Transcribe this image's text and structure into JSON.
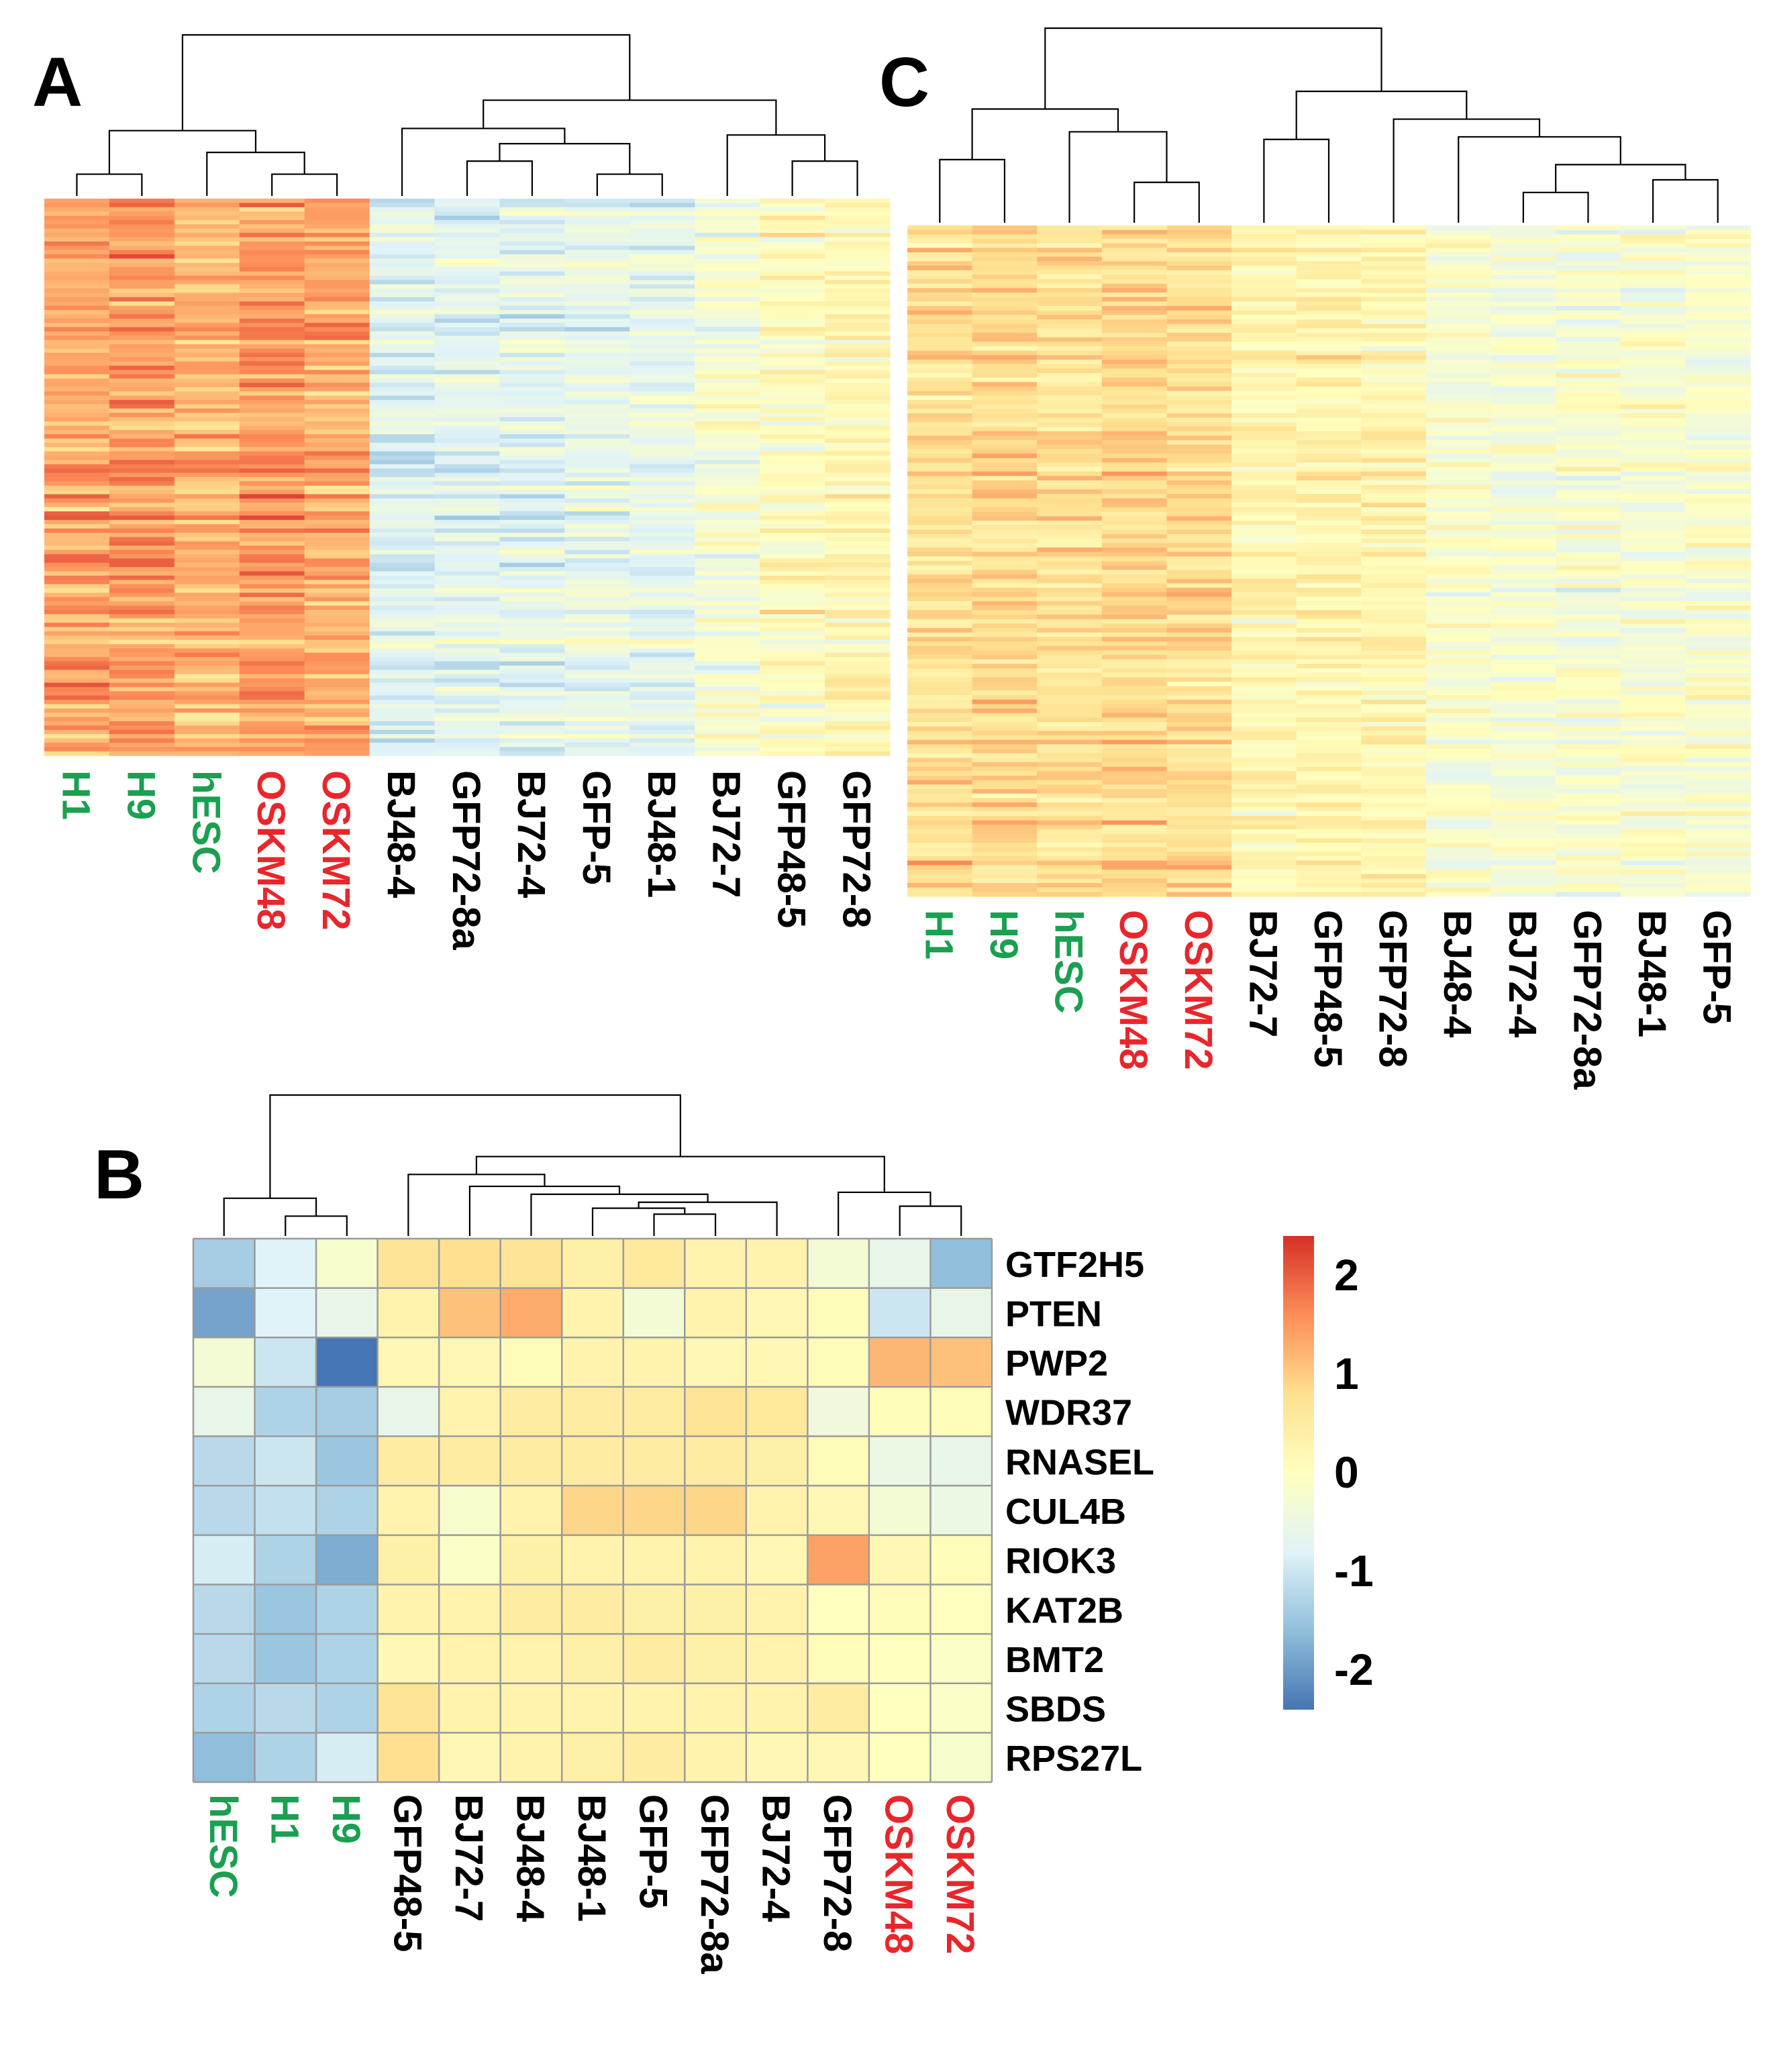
{
  "panels": [
    {
      "id": "A",
      "label": "A",
      "chart_data": {
        "type": "heatmap",
        "title": "",
        "columns": [
          "H1",
          "H9",
          "hESC",
          "OSKM48",
          "OSKM72",
          "BJ48-4",
          "GFP72-8a",
          "BJ72-4",
          "GFP-5",
          "BJ48-1",
          "BJ72-7",
          "GFP48-5",
          "GFP72-8"
        ],
        "column_groups": [
          "green",
          "green",
          "green",
          "red",
          "red",
          "black",
          "black",
          "black",
          "black",
          "black",
          "black",
          "black",
          "black"
        ],
        "column_means": [
          1.35,
          1.45,
          1.2,
          1.45,
          1.35,
          -0.75,
          -0.7,
          -0.7,
          -0.55,
          -0.6,
          -0.25,
          0.05,
          0.2
        ],
        "row_count": 130,
        "color_scale": [
          -2,
          2
        ],
        "dendrogram": "top"
      }
    },
    {
      "id": "C",
      "label": "C",
      "chart_data": {
        "type": "heatmap",
        "title": "",
        "columns": [
          "H1",
          "H9",
          "hESC",
          "OSKM48",
          "OSKM72",
          "BJ72-7",
          "GFP48-5",
          "GFP72-8",
          "BJ48-4",
          "BJ72-4",
          "GFP72-8a",
          "BJ48-1",
          "GFP-5"
        ],
        "column_groups": [
          "green",
          "green",
          "green",
          "red",
          "red",
          "black",
          "black",
          "black",
          "black",
          "black",
          "black",
          "black",
          "black"
        ],
        "column_means": [
          0.75,
          0.85,
          0.7,
          0.8,
          0.75,
          0.25,
          0.3,
          0.25,
          -0.2,
          -0.25,
          -0.2,
          -0.2,
          -0.15
        ],
        "row_count": 150,
        "color_scale": [
          -2,
          2
        ],
        "dendrogram": "top"
      }
    },
    {
      "id": "B",
      "label": "B",
      "chart_data": {
        "type": "heatmap",
        "title": "",
        "columns": [
          "hESC",
          "H1",
          "H9",
          "GFP48-5",
          "BJ72-7",
          "BJ48-4",
          "BJ48-1",
          "GFP-5",
          "GFP72-8a",
          "BJ72-4",
          "GFP72-8",
          "OSKM48",
          "OSKM72"
        ],
        "column_groups": [
          "green",
          "green",
          "green",
          "black",
          "black",
          "black",
          "black",
          "black",
          "black",
          "black",
          "black",
          "red",
          "red"
        ],
        "rows": [
          "GTF2H5",
          "PTEN",
          "PWP2",
          "WDR37",
          "RNASEL",
          "CUL4B",
          "RIOK3",
          "KAT2B",
          "BMT2",
          "SBDS",
          "RPS27L"
        ],
        "values": [
          [
            -1.4,
            -0.8,
            -0.2,
            0.7,
            0.8,
            0.7,
            0.4,
            0.6,
            0.3,
            0.3,
            -0.3,
            -0.6,
            -1.6
          ],
          [
            -1.9,
            -0.8,
            -0.6,
            0.3,
            1.1,
            1.3,
            0.3,
            -0.3,
            0.3,
            0.2,
            0.1,
            -1.0,
            -0.6
          ],
          [
            -0.3,
            -1.0,
            -2.4,
            0.2,
            0.2,
            0.1,
            0.3,
            0.3,
            0.2,
            0.2,
            0.1,
            1.2,
            1.1
          ],
          [
            -0.6,
            -1.3,
            -1.4,
            -0.6,
            0.3,
            0.5,
            0.5,
            0.5,
            0.7,
            0.6,
            -0.4,
            0.1,
            0.1
          ],
          [
            -1.2,
            -1.0,
            -1.5,
            0.5,
            0.5,
            0.5,
            0.5,
            0.5,
            0.5,
            0.4,
            0.1,
            -0.5,
            -0.6
          ],
          [
            -1.2,
            -1.1,
            -1.3,
            0.3,
            -0.2,
            0.3,
            0.9,
            0.9,
            0.9,
            0.3,
            0.2,
            -0.3,
            -0.5
          ],
          [
            -0.9,
            -1.3,
            -1.8,
            0.4,
            -0.1,
            0.4,
            0.3,
            0.3,
            0.3,
            0.2,
            1.4,
            0.2,
            0.1
          ],
          [
            -1.2,
            -1.5,
            -1.3,
            0.3,
            0.3,
            0.5,
            0.5,
            0.4,
            0.4,
            0.3,
            0.0,
            0.1,
            0.0
          ],
          [
            -1.2,
            -1.5,
            -1.3,
            0.2,
            0.3,
            0.3,
            0.4,
            0.5,
            0.4,
            0.3,
            0.1,
            0.0,
            -0.1
          ],
          [
            -1.3,
            -1.2,
            -1.3,
            0.7,
            0.3,
            0.3,
            0.3,
            0.3,
            0.3,
            0.3,
            0.5,
            0.0,
            -0.1
          ],
          [
            -1.6,
            -1.3,
            -0.9,
            0.8,
            0.2,
            0.3,
            0.4,
            0.5,
            0.3,
            0.2,
            0.2,
            0.0,
            -0.2
          ]
        ],
        "dendrogram": "top"
      }
    }
  ],
  "legend": {
    "ticks": [
      "2",
      "1",
      "0",
      "-1",
      "-2"
    ],
    "tick_values": [
      2,
      1,
      0,
      -1,
      -2
    ],
    "min": -2.4,
    "max": 2.4,
    "colors": [
      "#4575b4",
      "#91bfdb",
      "#e0f3f8",
      "#ffffbf",
      "#fee090",
      "#fc8d59",
      "#d73027"
    ]
  },
  "label_colors": {
    "green": "#1aa050",
    "red": "#e8262c",
    "black": "#000000"
  }
}
